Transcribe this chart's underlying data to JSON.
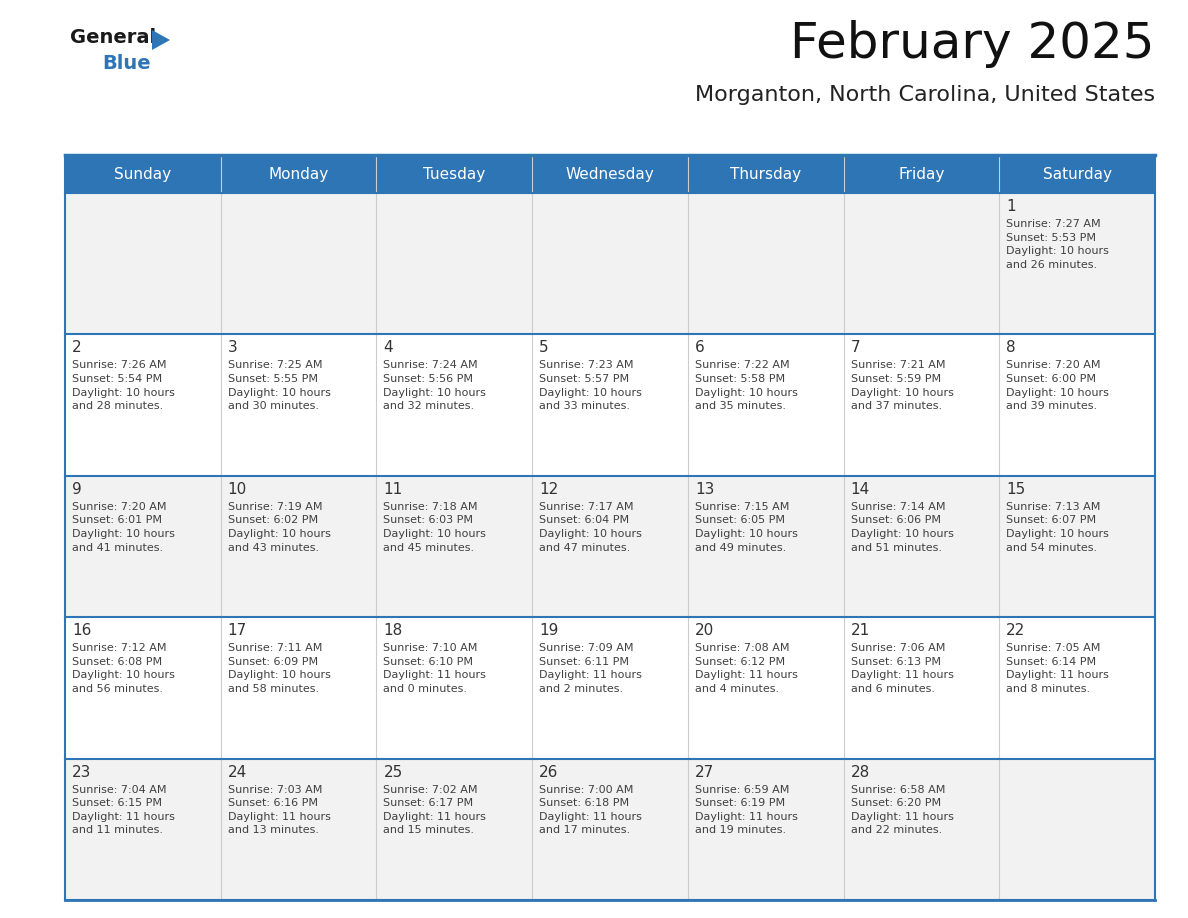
{
  "title": "February 2025",
  "subtitle": "Morganton, North Carolina, United States",
  "header_bg": "#2E75B6",
  "header_text_color": "#FFFFFF",
  "cell_bg_odd": "#F2F2F2",
  "cell_bg_even": "#FFFFFF",
  "border_color": "#2E75B6",
  "text_color": "#404040",
  "day_number_color": "#333333",
  "day_headers": [
    "Sunday",
    "Monday",
    "Tuesday",
    "Wednesday",
    "Thursday",
    "Friday",
    "Saturday"
  ],
  "weeks": [
    [
      {
        "day": null,
        "info": null
      },
      {
        "day": null,
        "info": null
      },
      {
        "day": null,
        "info": null
      },
      {
        "day": null,
        "info": null
      },
      {
        "day": null,
        "info": null
      },
      {
        "day": null,
        "info": null
      },
      {
        "day": 1,
        "info": "Sunrise: 7:27 AM\nSunset: 5:53 PM\nDaylight: 10 hours\nand 26 minutes."
      }
    ],
    [
      {
        "day": 2,
        "info": "Sunrise: 7:26 AM\nSunset: 5:54 PM\nDaylight: 10 hours\nand 28 minutes."
      },
      {
        "day": 3,
        "info": "Sunrise: 7:25 AM\nSunset: 5:55 PM\nDaylight: 10 hours\nand 30 minutes."
      },
      {
        "day": 4,
        "info": "Sunrise: 7:24 AM\nSunset: 5:56 PM\nDaylight: 10 hours\nand 32 minutes."
      },
      {
        "day": 5,
        "info": "Sunrise: 7:23 AM\nSunset: 5:57 PM\nDaylight: 10 hours\nand 33 minutes."
      },
      {
        "day": 6,
        "info": "Sunrise: 7:22 AM\nSunset: 5:58 PM\nDaylight: 10 hours\nand 35 minutes."
      },
      {
        "day": 7,
        "info": "Sunrise: 7:21 AM\nSunset: 5:59 PM\nDaylight: 10 hours\nand 37 minutes."
      },
      {
        "day": 8,
        "info": "Sunrise: 7:20 AM\nSunset: 6:00 PM\nDaylight: 10 hours\nand 39 minutes."
      }
    ],
    [
      {
        "day": 9,
        "info": "Sunrise: 7:20 AM\nSunset: 6:01 PM\nDaylight: 10 hours\nand 41 minutes."
      },
      {
        "day": 10,
        "info": "Sunrise: 7:19 AM\nSunset: 6:02 PM\nDaylight: 10 hours\nand 43 minutes."
      },
      {
        "day": 11,
        "info": "Sunrise: 7:18 AM\nSunset: 6:03 PM\nDaylight: 10 hours\nand 45 minutes."
      },
      {
        "day": 12,
        "info": "Sunrise: 7:17 AM\nSunset: 6:04 PM\nDaylight: 10 hours\nand 47 minutes."
      },
      {
        "day": 13,
        "info": "Sunrise: 7:15 AM\nSunset: 6:05 PM\nDaylight: 10 hours\nand 49 minutes."
      },
      {
        "day": 14,
        "info": "Sunrise: 7:14 AM\nSunset: 6:06 PM\nDaylight: 10 hours\nand 51 minutes."
      },
      {
        "day": 15,
        "info": "Sunrise: 7:13 AM\nSunset: 6:07 PM\nDaylight: 10 hours\nand 54 minutes."
      }
    ],
    [
      {
        "day": 16,
        "info": "Sunrise: 7:12 AM\nSunset: 6:08 PM\nDaylight: 10 hours\nand 56 minutes."
      },
      {
        "day": 17,
        "info": "Sunrise: 7:11 AM\nSunset: 6:09 PM\nDaylight: 10 hours\nand 58 minutes."
      },
      {
        "day": 18,
        "info": "Sunrise: 7:10 AM\nSunset: 6:10 PM\nDaylight: 11 hours\nand 0 minutes."
      },
      {
        "day": 19,
        "info": "Sunrise: 7:09 AM\nSunset: 6:11 PM\nDaylight: 11 hours\nand 2 minutes."
      },
      {
        "day": 20,
        "info": "Sunrise: 7:08 AM\nSunset: 6:12 PM\nDaylight: 11 hours\nand 4 minutes."
      },
      {
        "day": 21,
        "info": "Sunrise: 7:06 AM\nSunset: 6:13 PM\nDaylight: 11 hours\nand 6 minutes."
      },
      {
        "day": 22,
        "info": "Sunrise: 7:05 AM\nSunset: 6:14 PM\nDaylight: 11 hours\nand 8 minutes."
      }
    ],
    [
      {
        "day": 23,
        "info": "Sunrise: 7:04 AM\nSunset: 6:15 PM\nDaylight: 11 hours\nand 11 minutes."
      },
      {
        "day": 24,
        "info": "Sunrise: 7:03 AM\nSunset: 6:16 PM\nDaylight: 11 hours\nand 13 minutes."
      },
      {
        "day": 25,
        "info": "Sunrise: 7:02 AM\nSunset: 6:17 PM\nDaylight: 11 hours\nand 15 minutes."
      },
      {
        "day": 26,
        "info": "Sunrise: 7:00 AM\nSunset: 6:18 PM\nDaylight: 11 hours\nand 17 minutes."
      },
      {
        "day": 27,
        "info": "Sunrise: 6:59 AM\nSunset: 6:19 PM\nDaylight: 11 hours\nand 19 minutes."
      },
      {
        "day": 28,
        "info": "Sunrise: 6:58 AM\nSunset: 6:20 PM\nDaylight: 11 hours\nand 22 minutes."
      },
      {
        "day": null,
        "info": null
      }
    ]
  ],
  "fig_width": 11.88,
  "fig_height": 9.18,
  "dpi": 100
}
